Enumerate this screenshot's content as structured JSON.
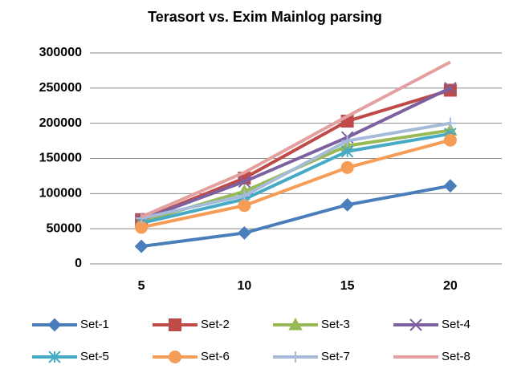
{
  "chart_data": {
    "type": "line",
    "title": "Terasort vs. Exim  Mainlog parsing",
    "categories": [
      "5",
      "10",
      "15",
      "20"
    ],
    "series": [
      {
        "name": "Set-1",
        "color": "#4a7ebb",
        "marker": "diamond",
        "values": [
          25000,
          44000,
          84000,
          111000
        ]
      },
      {
        "name": "Set-2",
        "color": "#be4b48",
        "marker": "square",
        "values": [
          63000,
          122000,
          203000,
          247000
        ]
      },
      {
        "name": "Set-3",
        "color": "#98b954",
        "marker": "triangle",
        "values": [
          60000,
          103000,
          168000,
          190000
        ]
      },
      {
        "name": "Set-4",
        "color": "#7d60a0",
        "marker": "x",
        "values": [
          63000,
          117000,
          180000,
          250000
        ]
      },
      {
        "name": "Set-5",
        "color": "#46aac5",
        "marker": "asterisk",
        "values": [
          58000,
          92000,
          160000,
          185000
        ]
      },
      {
        "name": "Set-6",
        "color": "#f59d56",
        "marker": "circle",
        "values": [
          52000,
          83000,
          137000,
          176000
        ]
      },
      {
        "name": "Set-7",
        "color": "#a5bbd9",
        "marker": "plus",
        "values": [
          65000,
          97000,
          175000,
          200000
        ]
      },
      {
        "name": "Set-8",
        "color": "#e3a09f",
        "marker": "none",
        "values": [
          67000,
          130000,
          210000,
          287000
        ]
      }
    ],
    "ylim": [
      0,
      300000
    ],
    "yticks": [
      0,
      50000,
      100000,
      150000,
      200000,
      250000,
      300000
    ],
    "grid": true,
    "legend": "bottom"
  }
}
